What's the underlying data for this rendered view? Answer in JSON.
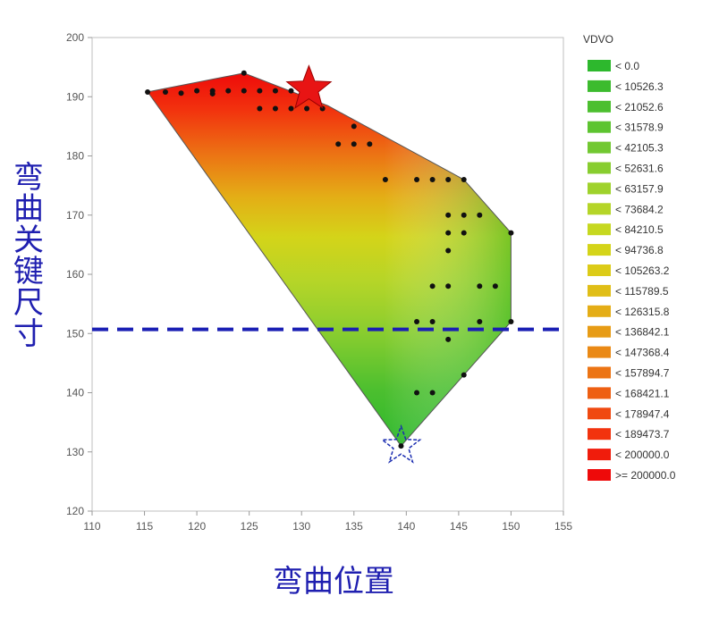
{
  "chart_data": {
    "type": "contour",
    "xlim": [
      110,
      155
    ],
    "ylim": [
      120,
      200
    ],
    "x_ticks": [
      "110",
      "115",
      "120",
      "125",
      "130",
      "135",
      "140",
      "145",
      "150",
      "155"
    ],
    "y_ticks": [
      "120",
      "130",
      "140",
      "150",
      "160",
      "170",
      "180",
      "190",
      "200"
    ],
    "xlabel": "弯曲位置",
    "ylabel": "弯曲关键尺寸",
    "grid": false,
    "legend_position": "right",
    "legend_title": "VDVO",
    "legend": [
      {
        "label": "< 0.0",
        "color": "#2db82d"
      },
      {
        "label": "< 10526.3",
        "color": "#3cbb2e"
      },
      {
        "label": "< 21052.6",
        "color": "#4cbf2f"
      },
      {
        "label": "< 31578.9",
        "color": "#5dc430"
      },
      {
        "label": "< 42105.3",
        "color": "#72c831"
      },
      {
        "label": "< 52631.6",
        "color": "#88cd2f"
      },
      {
        "label": "< 63157.9",
        "color": "#9fd22c"
      },
      {
        "label": "< 73684.2",
        "color": "#b5d528"
      },
      {
        "label": "< 84210.5",
        "color": "#c6d820"
      },
      {
        "label": "< 94736.8",
        "color": "#d4d419"
      },
      {
        "label": "< 105263.2",
        "color": "#dccb18"
      },
      {
        "label": "< 115789.5",
        "color": "#e0be17"
      },
      {
        "label": "< 126315.8",
        "color": "#e4ad16"
      },
      {
        "label": "< 136842.1",
        "color": "#e79c16"
      },
      {
        "label": "< 147368.4",
        "color": "#ea8915"
      },
      {
        "label": "< 157894.7",
        "color": "#ec7414"
      },
      {
        "label": "< 168421.1",
        "color": "#ee5f12"
      },
      {
        "label": "< 178947.4",
        "color": "#f04910"
      },
      {
        "label": "< 189473.7",
        "color": "#f2330e"
      },
      {
        "label": "< 200000.0",
        "color": "#f01c0c"
      },
      {
        "label": ">= 200000.0",
        "color": "#ee0a0a"
      }
    ],
    "hull": [
      [
        115.3,
        190.8
      ],
      [
        124.5,
        194
      ],
      [
        132.5,
        188.5
      ],
      [
        145.5,
        176
      ],
      [
        150,
        167
      ],
      [
        150,
        152
      ],
      [
        139.5,
        131
      ]
    ],
    "points": [
      [
        115.3,
        190.8
      ],
      [
        117,
        190.8
      ],
      [
        118.5,
        190.6
      ],
      [
        120,
        191
      ],
      [
        121.5,
        190.5
      ],
      [
        121.5,
        191
      ],
      [
        123,
        191
      ],
      [
        124.5,
        194
      ],
      [
        124.5,
        191
      ],
      [
        126,
        191
      ],
      [
        126,
        188
      ],
      [
        127.5,
        191
      ],
      [
        127.5,
        188
      ],
      [
        129,
        191
      ],
      [
        129,
        188
      ],
      [
        130.5,
        191
      ],
      [
        130.5,
        188
      ],
      [
        132,
        188
      ],
      [
        135,
        185
      ],
      [
        133.5,
        182
      ],
      [
        135,
        182
      ],
      [
        136.5,
        182
      ],
      [
        138,
        176
      ],
      [
        141,
        176
      ],
      [
        142.5,
        176
      ],
      [
        144,
        176
      ],
      [
        145.5,
        176
      ],
      [
        144,
        170
      ],
      [
        145.5,
        170
      ],
      [
        147,
        170
      ],
      [
        150,
        167
      ],
      [
        144,
        167
      ],
      [
        145.5,
        167
      ],
      [
        144,
        164
      ],
      [
        142.5,
        158
      ],
      [
        144,
        158
      ],
      [
        147,
        158
      ],
      [
        148.5,
        158
      ],
      [
        141,
        152
      ],
      [
        142.5,
        152
      ],
      [
        144,
        149
      ],
      [
        147,
        152
      ],
      [
        150,
        152
      ],
      [
        145.5,
        143
      ],
      [
        141,
        140
      ],
      [
        142.5,
        140
      ],
      [
        139.5,
        131
      ]
    ],
    "threshold_line_y": 150.7,
    "markers": [
      {
        "type": "filled-star",
        "x": 130.7,
        "y": 191.3,
        "color": "#e81414"
      },
      {
        "type": "outline-star",
        "x": 139.5,
        "y": 131,
        "color": "#1a2cb0"
      }
    ]
  }
}
